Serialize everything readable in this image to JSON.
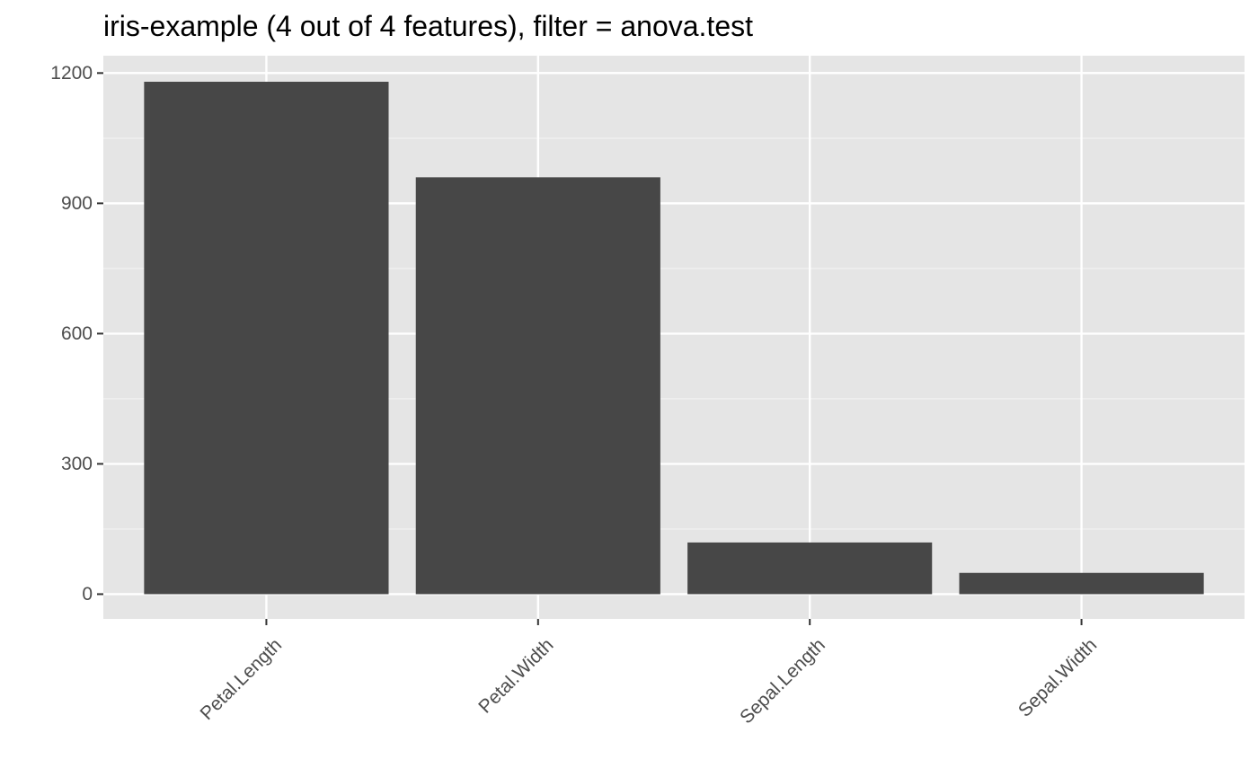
{
  "chart_data": {
    "type": "bar",
    "title": "iris-example (4 out of 4 features), filter = anova.test",
    "xlabel": "",
    "ylabel": "",
    "categories": [
      "Petal.Length",
      "Petal.Width",
      "Sepal.Length",
      "Sepal.Width"
    ],
    "values": [
      1180,
      960,
      119,
      49
    ],
    "ylim": [
      -57,
      1240
    ],
    "yticks": [
      0,
      300,
      600,
      900,
      1200
    ],
    "ytick_labels": [
      "0",
      "300",
      "600",
      "900",
      "1200"
    ],
    "grid": true,
    "legend": "none",
    "colors": {
      "bar": "#474747",
      "panel_background": "#e5e5e5",
      "grid_major": "#ffffff",
      "grid_minor": "#f2f2f2",
      "tick_text": "#4d4d4d",
      "title_text": "#000000"
    }
  }
}
